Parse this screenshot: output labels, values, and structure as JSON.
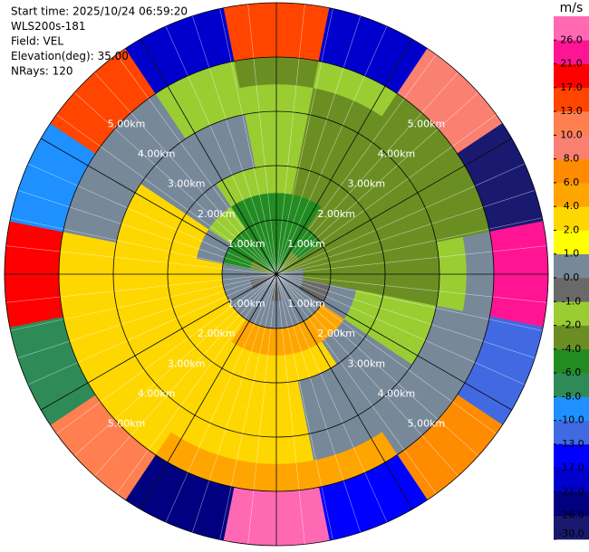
{
  "chart_data": {
    "type": "ppi",
    "info": [
      "Start time: 2025/10/24 06:59:20",
      "WLS200s-181",
      "Field: VEL",
      "Elevation(deg): 35.00",
      "NRays: 120"
    ],
    "rings": [
      {
        "value": 1,
        "label": "1.00km"
      },
      {
        "value": 2,
        "label": "2.00km"
      },
      {
        "value": 3,
        "label": "3.00km"
      },
      {
        "value": 4,
        "label": "4.00km"
      },
      {
        "value": 5,
        "label": "5.00km"
      }
    ],
    "field": {
      "azimuths": [
        0,
        22.5,
        45,
        67.5,
        90,
        112.5,
        135,
        157.5,
        180,
        202.5,
        225,
        247.5,
        270,
        292.5,
        315,
        337.5
      ],
      "range_edges": [
        0,
        0.5,
        1,
        1.5,
        2,
        2.5,
        3,
        3.5,
        4,
        5
      ],
      "values": [
        [
          -5,
          -5,
          -3,
          -3,
          0.5,
          0.5,
          0.5,
          0.5,
          -0.5,
          0.5,
          0.5,
          -0.5,
          0.5,
          -3,
          -5,
          -5
        ],
        [
          -5,
          -5,
          -5,
          -3,
          -3,
          -0.5,
          0.5,
          0.5,
          0.5,
          0.5,
          0.5,
          0.5,
          0.5,
          -5,
          -5,
          -5
        ],
        [
          -5,
          -5,
          -3,
          -3,
          -3,
          0.5,
          5,
          5,
          5,
          5,
          3,
          3,
          3,
          0.5,
          -1.5,
          -5
        ],
        [
          -1.5,
          -3,
          -3,
          -3,
          -3,
          -1.5,
          0.5,
          3,
          3,
          3,
          3,
          3,
          3,
          3,
          0.5,
          -1.5
        ],
        [
          -1.5,
          -3,
          -3,
          -3,
          -3,
          -1.5,
          0.5,
          0.5,
          3,
          3,
          3,
          3,
          3,
          3,
          0.5,
          0.5
        ],
        [
          -1.5,
          -3,
          -3,
          -3,
          -3,
          -1.5,
          0.5,
          0.5,
          3,
          3,
          3,
          3,
          3,
          3,
          0.5,
          0.5
        ],
        [
          -1.5,
          -3,
          -3,
          -3,
          -1.5,
          0.5,
          0.5,
          0.5,
          3,
          3,
          3,
          3,
          3,
          0.5,
          0.5,
          -1.5
        ],
        [
          -3,
          -1.5,
          -3,
          -3,
          0.5,
          0.5,
          0.5,
          5,
          5,
          5,
          3,
          3,
          3,
          0.5,
          0.5,
          -1.5
        ],
        [
          15,
          -19,
          9,
          -28,
          23,
          -11,
          7,
          -15,
          27,
          -23,
          11,
          -7,
          19,
          -9,
          14,
          -19
        ]
      ]
    },
    "colorbar": {
      "label": "m/s",
      "boundaries": [
        -30,
        -26,
        -21,
        -17,
        -13,
        -10,
        -8,
        -6,
        -4,
        -2,
        -1,
        0,
        1,
        2,
        4,
        6,
        8,
        10,
        13,
        17,
        21,
        26,
        30
      ],
      "colors": [
        "#191970",
        "#000080",
        "#0000cd",
        "#0000ff",
        "#4169e1",
        "#1e90ff",
        "#2e8b57",
        "#228b22",
        "#6b8e23",
        "#9acd32",
        "#696969",
        "#778899",
        "#ffff00",
        "#ffd700",
        "#ffa500",
        "#ff8c00",
        "#fa8072",
        "#ff7f50",
        "#ff4500",
        "#ff0000",
        "#ff1493",
        "#ff69b4"
      ],
      "ticks": [
        {
          "value": -30,
          "label": "-30.0"
        },
        {
          "value": -26,
          "label": "-26.0"
        },
        {
          "value": -21,
          "label": "-21.0"
        },
        {
          "value": -17,
          "label": "-17.0"
        },
        {
          "value": -13,
          "label": "-13.0"
        },
        {
          "value": -10,
          "label": "-10.0"
        },
        {
          "value": -8,
          "label": "-8.0"
        },
        {
          "value": -6,
          "label": "-6.0"
        },
        {
          "value": -4,
          "label": "-4.0"
        },
        {
          "value": -2,
          "label": "-2.0"
        },
        {
          "value": -1,
          "label": "-1.0"
        },
        {
          "value": 0,
          "label": "0.0"
        },
        {
          "value": 1,
          "label": "1.0"
        },
        {
          "value": 2,
          "label": "2.0"
        },
        {
          "value": 4,
          "label": "4.0"
        },
        {
          "value": 6,
          "label": "6.0"
        },
        {
          "value": 8,
          "label": "8.0"
        },
        {
          "value": 10,
          "label": "10.0"
        },
        {
          "value": 13,
          "label": "13.0"
        },
        {
          "value": 17,
          "label": "17.0"
        },
        {
          "value": 21,
          "label": "21.0"
        },
        {
          "value": 26,
          "label": "26.0"
        }
      ]
    }
  }
}
